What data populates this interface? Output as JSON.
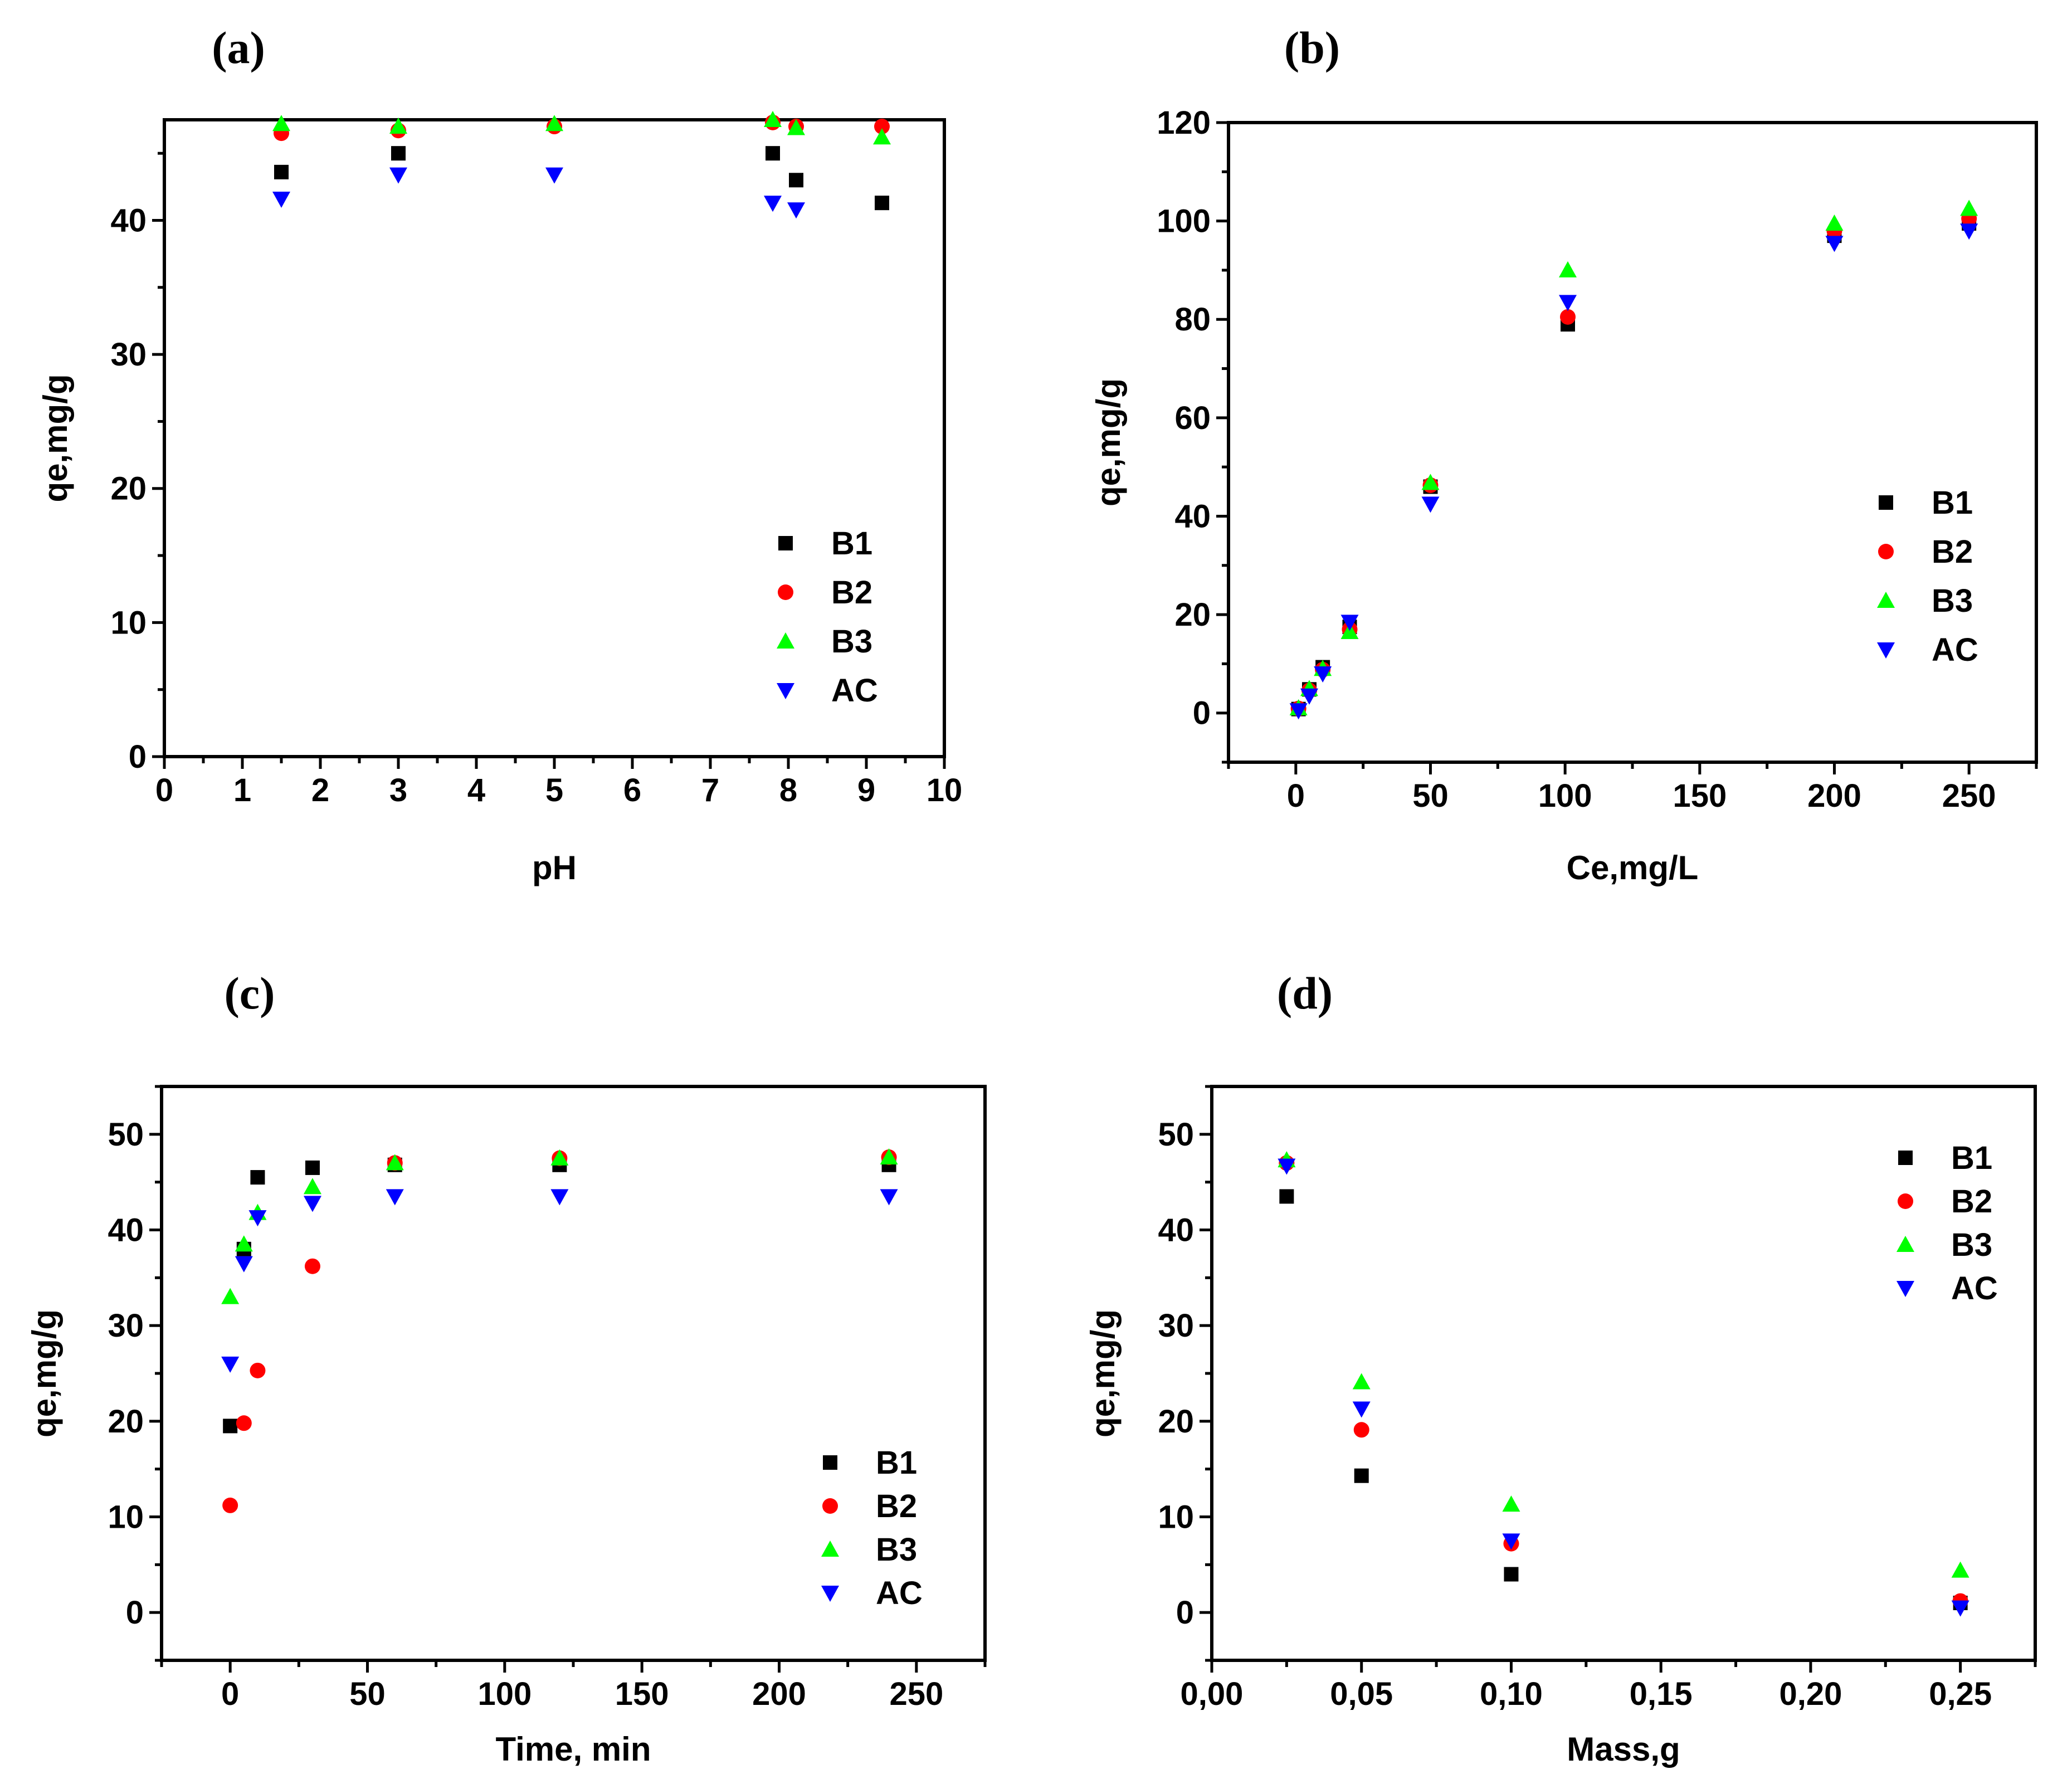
{
  "panel_labels": [
    "(a)",
    "(b)",
    "(c)",
    "(d)"
  ],
  "chart_data": [
    {
      "type": "scatter",
      "panel": "(a)",
      "xlabel": "pH",
      "ylabel": "qe,mg/g",
      "xlim": [
        0,
        10
      ],
      "ylim": [
        0,
        47.5
      ],
      "xticks": [
        0,
        1,
        2,
        3,
        4,
        5,
        6,
        7,
        8,
        9,
        10
      ],
      "xtick_labels": [
        "0",
        "1",
        "2",
        "3",
        "4",
        "5",
        "6",
        "7",
        "8",
        "9",
        "10"
      ],
      "yticks": [
        0,
        10,
        20,
        30,
        40
      ],
      "ytick_labels": [
        "0",
        "10",
        "20",
        "30",
        "40"
      ],
      "legend_position": "bottom-right",
      "series": [
        {
          "name": "B1",
          "marker": "square",
          "color": "#000000",
          "x": [
            1.5,
            3,
            7.8,
            8.1,
            9.2
          ],
          "y": [
            43.6,
            45.0,
            45.0,
            43.0,
            41.3
          ]
        },
        {
          "name": "B2",
          "marker": "circle",
          "color": "#ff0000",
          "x": [
            1.5,
            3,
            5,
            7.8,
            8.1,
            9.2
          ],
          "y": [
            46.5,
            46.7,
            47.0,
            47.3,
            47.0,
            47.0
          ]
        },
        {
          "name": "B3",
          "marker": "triangle-up",
          "color": "#00ff00",
          "x": [
            1.5,
            3,
            5,
            7.8,
            8.1,
            9.2
          ],
          "y": [
            47.2,
            47.0,
            47.2,
            47.5,
            46.9,
            46.2
          ]
        },
        {
          "name": "AC",
          "marker": "triangle-down",
          "color": "#0000ff",
          "x": [
            1.5,
            3,
            5,
            7.8,
            8.1
          ],
          "y": [
            41.6,
            43.4,
            43.4,
            41.3,
            40.8
          ]
        }
      ]
    },
    {
      "type": "scatter",
      "panel": "(b)",
      "xlabel": "Ce,mg/L",
      "ylabel": "qe,mg/g",
      "xlim": [
        -25,
        275
      ],
      "ylim": [
        -10,
        120
      ],
      "xticks": [
        0,
        50,
        100,
        150,
        200,
        250
      ],
      "xtick_labels": [
        "0",
        "50",
        "100",
        "150",
        "200",
        "250"
      ],
      "yticks": [
        0,
        20,
        40,
        60,
        80,
        100,
        120
      ],
      "ytick_labels": [
        "0",
        "20",
        "40",
        "60",
        "80",
        "100",
        "120"
      ],
      "legend_position": "right",
      "series": [
        {
          "name": "B1",
          "marker": "square",
          "color": "#000000",
          "x": [
            1,
            5,
            10,
            20,
            50,
            101,
            200,
            250
          ],
          "y": [
            0.8,
            4.8,
            9.3,
            17.5,
            46.0,
            79.0,
            97.0,
            99.5
          ]
        },
        {
          "name": "B2",
          "marker": "circle",
          "color": "#ff0000",
          "x": [
            1,
            5,
            10,
            20,
            50,
            101,
            200,
            250
          ],
          "y": [
            0.9,
            4.6,
            8.8,
            17.0,
            46.3,
            80.5,
            98.0,
            100.5
          ]
        },
        {
          "name": "B3",
          "marker": "triangle-up",
          "color": "#00ff00",
          "x": [
            1,
            5,
            10,
            20,
            50,
            101,
            200,
            250
          ],
          "y": [
            1.0,
            4.9,
            9.0,
            16.5,
            46.8,
            90.0,
            99.5,
            102.5
          ]
        },
        {
          "name": "AC",
          "marker": "triangle-down",
          "color": "#0000ff",
          "x": [
            1,
            5,
            10,
            20,
            50,
            101,
            200,
            250
          ],
          "y": [
            0.5,
            3.5,
            8.0,
            18.5,
            42.5,
            83.5,
            95.5,
            98.0
          ]
        }
      ]
    },
    {
      "type": "scatter",
      "panel": "(c)",
      "xlabel": "Time, min",
      "ylabel": "qe,mg/g",
      "xlim": [
        -25,
        275
      ],
      "ylim": [
        -5,
        55
      ],
      "xticks": [
        0,
        50,
        100,
        150,
        200,
        250
      ],
      "xtick_labels": [
        "0",
        "50",
        "100",
        "150",
        "200",
        "250"
      ],
      "yticks": [
        0,
        10,
        20,
        30,
        40,
        50
      ],
      "ytick_labels": [
        "0",
        "10",
        "20",
        "30",
        "40",
        "50"
      ],
      "legend_position": "bottom-right",
      "series": [
        {
          "name": "B1",
          "marker": "square",
          "color": "#000000",
          "x": [
            0,
            5,
            10,
            30,
            60,
            120,
            240
          ],
          "y": [
            19.5,
            38.0,
            45.5,
            46.5,
            46.8,
            46.8,
            46.8
          ]
        },
        {
          "name": "B2",
          "marker": "circle",
          "color": "#ff0000",
          "x": [
            0,
            5,
            10,
            30,
            60,
            120,
            240
          ],
          "y": [
            11.2,
            19.8,
            25.3,
            36.2,
            47.0,
            47.5,
            47.6
          ]
        },
        {
          "name": "B3",
          "marker": "triangle-up",
          "color": "#00ff00",
          "x": [
            0,
            5,
            10,
            30,
            60,
            120,
            240
          ],
          "y": [
            33.0,
            38.5,
            41.8,
            44.5,
            47.0,
            47.5,
            47.6
          ]
        },
        {
          "name": "AC",
          "marker": "triangle-down",
          "color": "#0000ff",
          "x": [
            0,
            5,
            10,
            30,
            60,
            120,
            240
          ],
          "y": [
            26.0,
            36.5,
            41.3,
            42.8,
            43.5,
            43.5,
            43.5
          ]
        }
      ]
    },
    {
      "type": "scatter",
      "panel": "(d)",
      "xlabel": "Mass,g",
      "ylabel": "qe,mg/g",
      "xlim": [
        0,
        0.275
      ],
      "ylim": [
        -5,
        55
      ],
      "xticks": [
        0,
        0.05,
        0.1,
        0.15,
        0.2,
        0.25
      ],
      "xtick_labels": [
        "0,00",
        "0,05",
        "0,10",
        "0,15",
        "0,20",
        "0,25"
      ],
      "yticks": [
        0,
        10,
        20,
        30,
        40,
        50
      ],
      "ytick_labels": [
        "0",
        "10",
        "20",
        "30",
        "40",
        "50"
      ],
      "legend_position": "top-right",
      "series": [
        {
          "name": "B1",
          "marker": "square",
          "color": "#000000",
          "x": [
            0.025,
            0.05,
            0.1,
            0.25
          ],
          "y": [
            43.5,
            14.3,
            4.0,
            1.0
          ]
        },
        {
          "name": "B2",
          "marker": "circle",
          "color": "#ff0000",
          "x": [
            0.025,
            0.05,
            0.1,
            0.25
          ],
          "y": [
            47.0,
            19.1,
            7.2,
            1.2
          ]
        },
        {
          "name": "B3",
          "marker": "triangle-up",
          "color": "#00ff00",
          "x": [
            0.025,
            0.05,
            0.1,
            0.25
          ],
          "y": [
            47.3,
            24.1,
            11.3,
            4.4
          ]
        },
        {
          "name": "AC",
          "marker": "triangle-down",
          "color": "#0000ff",
          "x": [
            0.025,
            0.05,
            0.1,
            0.25
          ],
          "y": [
            46.7,
            21.3,
            7.5,
            0.5
          ]
        }
      ]
    }
  ]
}
